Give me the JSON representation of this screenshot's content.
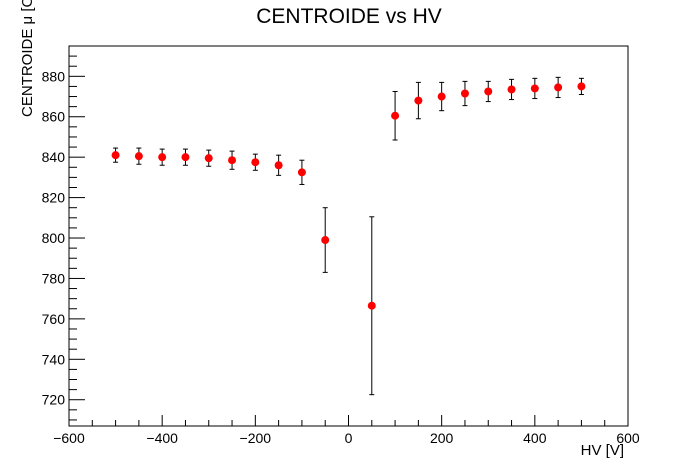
{
  "chart_data": {
    "type": "scatter",
    "title": "CENTROIDE vs HV",
    "xlabel": "HV [V]",
    "ylabel": "CENTROIDE μ [CH]",
    "xlim": [
      -600,
      600
    ],
    "ylim": [
      707,
      895
    ],
    "x_ticks": [
      -600,
      -400,
      -200,
      0,
      200,
      400,
      600
    ],
    "y_ticks": [
      720,
      740,
      760,
      780,
      800,
      820,
      840,
      860,
      880
    ],
    "grid": false,
    "legend": "none",
    "marker_color": "#ff0000",
    "series": [
      {
        "x": [
          -500,
          -450,
          -400,
          -350,
          -300,
          -250,
          -200,
          -150,
          -100,
          -50,
          50,
          100,
          150,
          200,
          250,
          300,
          350,
          400,
          450,
          500
        ],
        "y": [
          841,
          840.5,
          840,
          840,
          839.5,
          838.5,
          837.5,
          836,
          832.5,
          799,
          766.5,
          860.5,
          868,
          870,
          871.5,
          872.5,
          873.5,
          874,
          874.5,
          875
        ],
        "y_err": [
          3.5,
          4,
          4,
          4,
          4,
          4.5,
          4,
          5,
          6,
          16,
          44,
          12,
          9,
          7,
          6,
          5,
          5,
          5,
          5,
          4
        ]
      }
    ]
  }
}
